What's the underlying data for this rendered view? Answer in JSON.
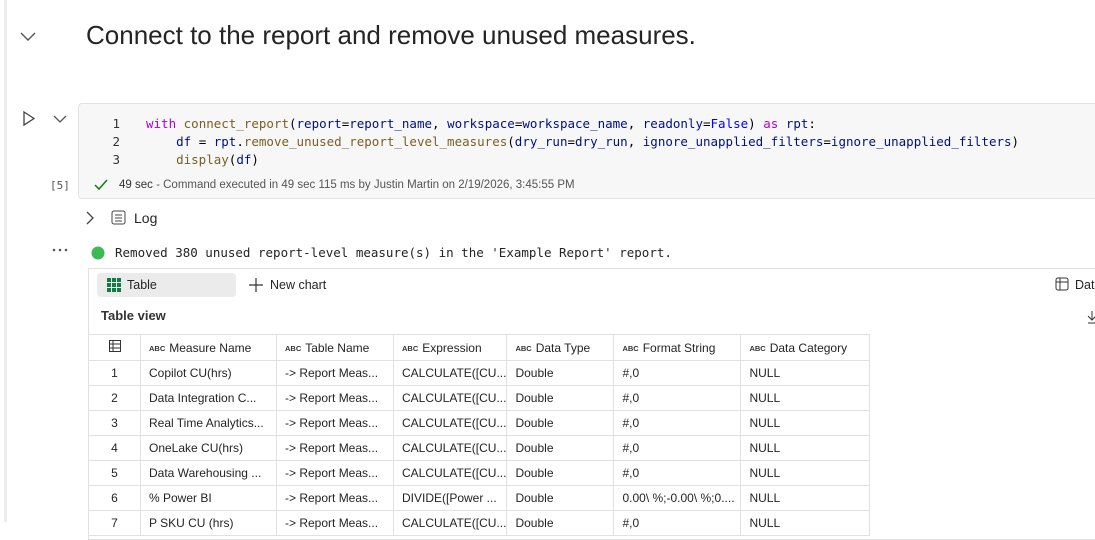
{
  "markdown": {
    "heading": "Connect to the report and remove unused measures."
  },
  "code_cell": {
    "execution_count": "[5]",
    "lines": [
      {
        "number": 1,
        "tokens": [
          {
            "t": "with",
            "c": "#af00db"
          },
          {
            "t": " ",
            "c": "#000000"
          },
          {
            "t": "connect_report",
            "c": "#795e26"
          },
          {
            "t": "(",
            "c": "#000000"
          },
          {
            "t": "report",
            "c": "#001080"
          },
          {
            "t": "=",
            "c": "#000000"
          },
          {
            "t": "report_name",
            "c": "#001080"
          },
          {
            "t": ", ",
            "c": "#000000"
          },
          {
            "t": "workspace",
            "c": "#001080"
          },
          {
            "t": "=",
            "c": "#000000"
          },
          {
            "t": "workspace_name",
            "c": "#001080"
          },
          {
            "t": ", ",
            "c": "#000000"
          },
          {
            "t": "readonly",
            "c": "#001080"
          },
          {
            "t": "=",
            "c": "#000000"
          },
          {
            "t": "False",
            "c": "#0000ff"
          },
          {
            "t": ") ",
            "c": "#000000"
          },
          {
            "t": "as",
            "c": "#af00db"
          },
          {
            "t": " ",
            "c": "#000000"
          },
          {
            "t": "rpt",
            "c": "#001080"
          },
          {
            "t": ":",
            "c": "#000000"
          }
        ]
      },
      {
        "number": 2,
        "tokens": [
          {
            "t": "    ",
            "c": "#000000"
          },
          {
            "t": "df",
            "c": "#001080"
          },
          {
            "t": " = ",
            "c": "#000000"
          },
          {
            "t": "rpt",
            "c": "#001080"
          },
          {
            "t": ".",
            "c": "#000000"
          },
          {
            "t": "remove_unused_report_level_measures",
            "c": "#795e26"
          },
          {
            "t": "(",
            "c": "#000000"
          },
          {
            "t": "dry_run",
            "c": "#001080"
          },
          {
            "t": "=",
            "c": "#000000"
          },
          {
            "t": "dry_run",
            "c": "#001080"
          },
          {
            "t": ", ",
            "c": "#000000"
          },
          {
            "t": "ignore_unapplied_filters",
            "c": "#001080"
          },
          {
            "t": "=",
            "c": "#000000"
          },
          {
            "t": "ignore_unapplied_filters",
            "c": "#001080"
          },
          {
            "t": ")",
            "c": "#000000"
          }
        ]
      },
      {
        "number": 3,
        "tokens": [
          {
            "t": "    ",
            "c": "#000000"
          },
          {
            "t": "display",
            "c": "#795e26"
          },
          {
            "t": "(",
            "c": "#000000"
          },
          {
            "t": "df",
            "c": "#001080"
          },
          {
            "t": ")",
            "c": "#000000"
          }
        ]
      }
    ],
    "status": {
      "duration": "49 sec",
      "detail": "- Command executed in 49 sec 115 ms by Justin Martin on 2/19/2026, 3:45:55 PM"
    }
  },
  "log": {
    "label": "Log"
  },
  "output": {
    "message": "Removed 380 unused report-level measure(s) in the 'Example Report' report.",
    "toolbar": {
      "table": "Table",
      "new_chart": "New chart",
      "data": "Dat"
    },
    "view_title": "Table view",
    "table": {
      "headers": [
        {
          "type": "ABC",
          "name": "Measure Name"
        },
        {
          "type": "ABC",
          "name": "Table Name"
        },
        {
          "type": "ABC",
          "name": "Expression"
        },
        {
          "type": "ABC",
          "name": "Data Type"
        },
        {
          "type": "ABC",
          "name": "Format String"
        },
        {
          "type": "ABC",
          "name": "Data Category"
        }
      ],
      "rows": [
        [
          1,
          "Copilot CU(hrs)",
          "-> Report Meas...",
          "CALCULATE([CU...",
          "Double",
          "#,0",
          "NULL"
        ],
        [
          2,
          "Data Integration C...",
          "-> Report Meas...",
          "CALCULATE([CU...",
          "Double",
          "#,0",
          "NULL"
        ],
        [
          3,
          "Real Time Analytics...",
          "-> Report Meas...",
          "CALCULATE([CU...",
          "Double",
          "#,0",
          "NULL"
        ],
        [
          4,
          "OneLake CU(hrs)",
          "-> Report Meas...",
          "CALCULATE([CU...",
          "Double",
          "#,0",
          "NULL"
        ],
        [
          5,
          "Data Warehousing ...",
          "-> Report Meas...",
          "CALCULATE([CU...",
          "Double",
          "#,0",
          "NULL"
        ],
        [
          6,
          "% Power BI",
          "-> Report Meas...",
          "DIVIDE([Power ...",
          "Double",
          "0.00\\ %;-0.00\\ %;0....",
          "NULL"
        ],
        [
          7,
          "P SKU CU (hrs)",
          "-> Report Meas...",
          "CALCULATE([CU...",
          "Double",
          "#,0",
          "NULL"
        ]
      ]
    }
  }
}
